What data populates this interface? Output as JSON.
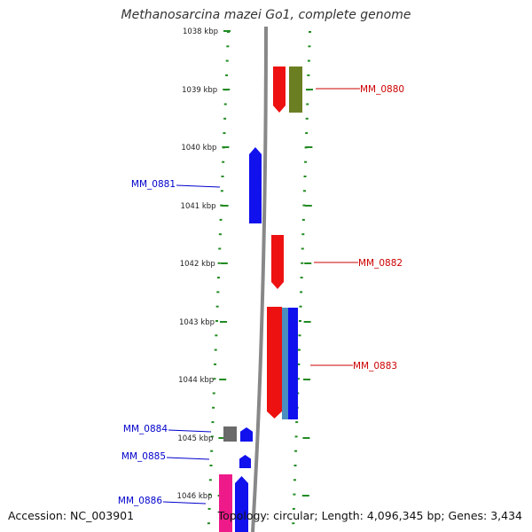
{
  "title": "Methanosarcina mazei Go1, complete genome",
  "footer": {
    "accession": "Accession: NC_003901",
    "summary": "Topology: circular; Length: 4,096,345 bp; Genes: 3,434"
  },
  "ticks": [
    "1038 kbp",
    "1039 kbp",
    "1040 kbp",
    "1041 kbp",
    "1042 kbp",
    "1043 kbp",
    "1044 kbp",
    "1045 kbp",
    "1046 kbp"
  ],
  "genes": [
    {
      "name": "MM_0880",
      "color": "#cc0000",
      "side": "right"
    },
    {
      "name": "MM_0881",
      "color": "#0000cc",
      "side": "left"
    },
    {
      "name": "MM_0882",
      "color": "#cc0000",
      "side": "right"
    },
    {
      "name": "MM_0883",
      "color": "#cc0000",
      "side": "right"
    },
    {
      "name": "MM_0884",
      "color": "#0000cc",
      "side": "left"
    },
    {
      "name": "MM_0885",
      "color": "#0000cc",
      "side": "left"
    },
    {
      "name": "MM_0886",
      "color": "#0000cc",
      "side": "left"
    }
  ],
  "colors": {
    "tick_green": "#228b22",
    "backbone": "#888888",
    "red": "#ee1111",
    "blue": "#1111ee",
    "olive": "#6b7f22",
    "steelblue": "#4a8fbf",
    "gray": "#6a6a6a",
    "magenta": "#ee1a8a"
  }
}
